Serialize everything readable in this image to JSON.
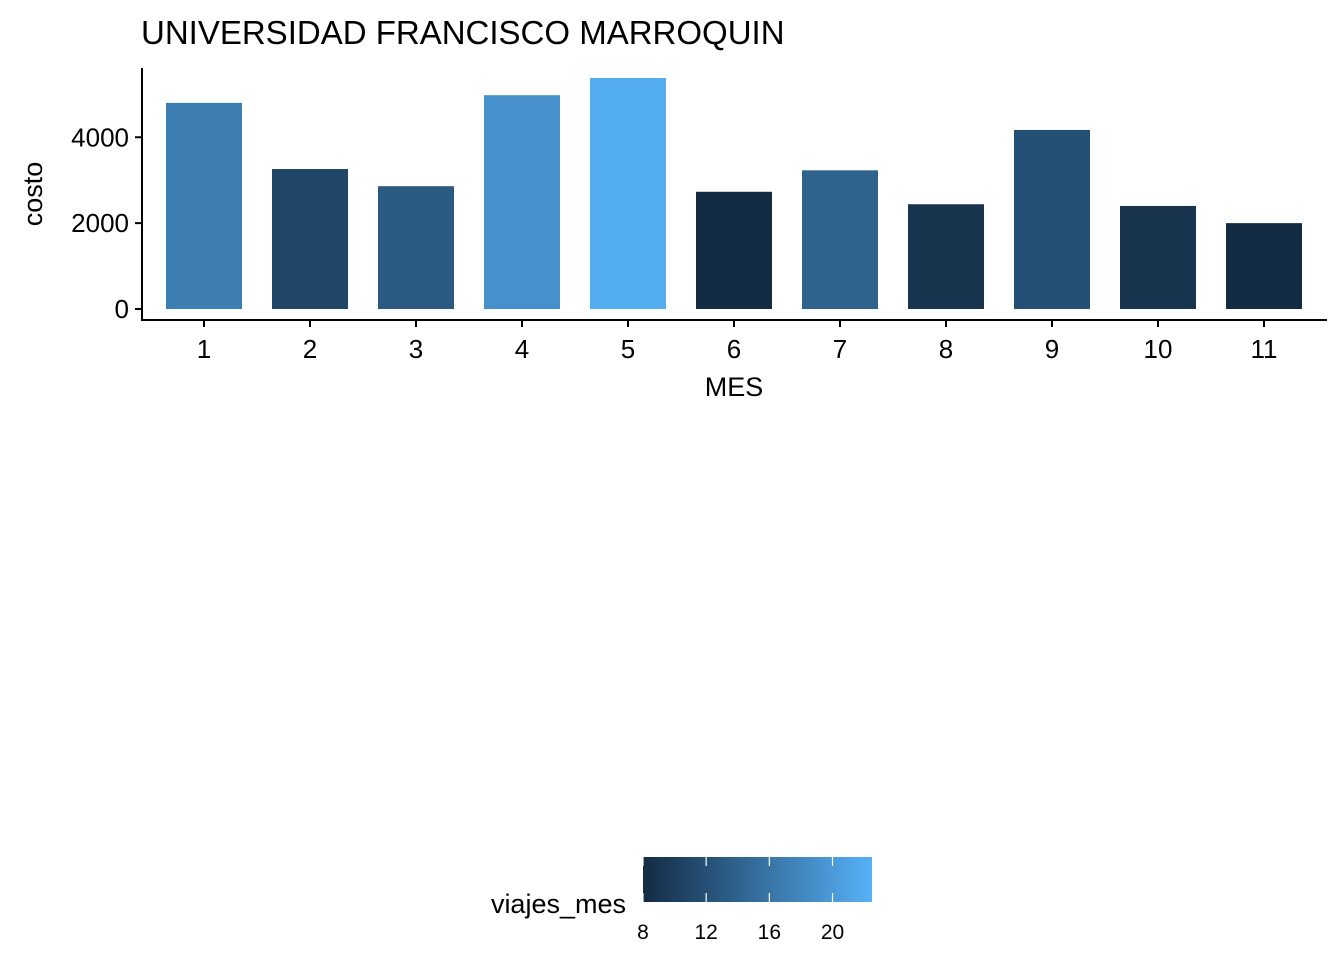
{
  "chart_data": {
    "type": "bar",
    "title": "UNIVERSIDAD FRANCISCO MARROQUIN",
    "xlabel": "MES",
    "ylabel": "costo",
    "categories": [
      "1",
      "2",
      "3",
      "4",
      "5",
      "6",
      "7",
      "8",
      "9",
      "10",
      "11"
    ],
    "values": [
      4800,
      3260,
      2860,
      4980,
      5380,
      2730,
      3230,
      2440,
      4170,
      2400,
      2000
    ],
    "fill_values": [
      17,
      11,
      13,
      19,
      22,
      8,
      14,
      9,
      12,
      9,
      8
    ],
    "ylim": [
      0,
      5380
    ],
    "y_ticks": [
      0,
      2000,
      4000
    ],
    "y_tick_labels": [
      "0",
      "2000",
      "4000"
    ],
    "grid": false,
    "legend": {
      "type": "colorbar",
      "title": "viajes_mes",
      "position": "bottom",
      "range": [
        8,
        22.5
      ],
      "ticks": [
        8,
        12,
        16,
        20
      ],
      "tick_labels": [
        "8",
        "12",
        "16",
        "20"
      ],
      "color_low": "#132B43",
      "color_high": "#56B1F7"
    }
  }
}
